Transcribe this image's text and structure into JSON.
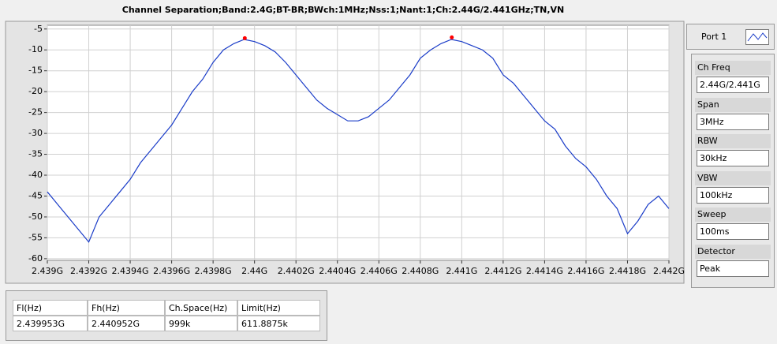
{
  "chart_data": {
    "type": "line",
    "title": "Channel Separation;Band:2.4G;BT-BR;BWch:1MHz;Nss:1;Nant:1;Ch:2.44G/2.441GHz;TN,VN",
    "x": [
      2.439,
      2.43905,
      2.4391,
      2.43915,
      2.4392,
      2.43925,
      2.4393,
      2.43935,
      2.4394,
      2.43945,
      2.4395,
      2.43955,
      2.4396,
      2.43965,
      2.4397,
      2.43975,
      2.4398,
      2.43985,
      2.4399,
      2.43995,
      2.44,
      2.44005,
      2.4401,
      2.44015,
      2.4402,
      2.44025,
      2.4403,
      2.44035,
      2.4404,
      2.44045,
      2.4405,
      2.44055,
      2.4406,
      2.44065,
      2.4407,
      2.44075,
      2.4408,
      2.44085,
      2.4409,
      2.44095,
      2.441,
      2.44105,
      2.4411,
      2.44115,
      2.4412,
      2.44125,
      2.4413,
      2.44135,
      2.4414,
      2.44145,
      2.4415,
      2.44155,
      2.4416,
      2.44165,
      2.4417,
      2.44175,
      2.4418,
      2.44185,
      2.4419,
      2.44195,
      2.442
    ],
    "series": [
      {
        "color": "#1a3cc8",
        "values": [
          -44,
          -47,
          -50,
          -53,
          -56,
          -50,
          -47,
          -44,
          -41,
          -37,
          -34,
          -31,
          -28,
          -24,
          -20,
          -17,
          -13,
          -10,
          -8.5,
          -7.5,
          -8,
          -9,
          -10.5,
          -13,
          -16,
          -19,
          -22,
          -24,
          -25.5,
          -27,
          -27,
          -26,
          -24,
          -22,
          -19,
          -16,
          -12,
          -10,
          -8.5,
          -7.5,
          -8,
          -9,
          -10,
          -12,
          -16,
          -18,
          -21,
          -24,
          -27,
          -29,
          -33,
          -36,
          -38,
          -41,
          -45,
          -48,
          -54,
          -51,
          -47,
          -45,
          -48
        ]
      }
    ],
    "peaks": {
      "color": "#ff0000",
      "x": [
        2.439953,
        2.440952
      ],
      "y": [
        -7.2,
        -7
      ]
    },
    "xlim": [
      2.439,
      2.442
    ],
    "xticks": [
      {
        "value": 2.439,
        "label": "2.439G"
      },
      {
        "value": 2.4392,
        "label": "2.4392G"
      },
      {
        "value": 2.4394,
        "label": "2.4394G"
      },
      {
        "value": 2.4396,
        "label": "2.4396G"
      },
      {
        "value": 2.4398,
        "label": "2.4398G"
      },
      {
        "value": 2.44,
        "label": "2.44G"
      },
      {
        "value": 2.4402,
        "label": "2.4402G"
      },
      {
        "value": 2.4404,
        "label": "2.4404G"
      },
      {
        "value": 2.4406,
        "label": "2.4406G"
      },
      {
        "value": 2.4408,
        "label": "2.4408G"
      },
      {
        "value": 2.441,
        "label": "2.441G"
      },
      {
        "value": 2.4412,
        "label": "2.4412G"
      },
      {
        "value": 2.4414,
        "label": "2.4414G"
      },
      {
        "value": 2.4416,
        "label": "2.4416G"
      },
      {
        "value": 2.4418,
        "label": "2.4418G"
      },
      {
        "value": 2.442,
        "label": "2.442G"
      }
    ],
    "ylim": [
      -60.4,
      -4.1
    ],
    "yticks": [
      -5,
      -10,
      -15,
      -20,
      -25,
      -30,
      -35,
      -40,
      -45,
      -50,
      -55,
      -60
    ],
    "grid": true
  },
  "port": {
    "label": "Port 1"
  },
  "settings": [
    {
      "label": "Ch Freq",
      "value": "2.44G/2.441G"
    },
    {
      "label": "Span",
      "value": "3MHz"
    },
    {
      "label": "RBW",
      "value": "30kHz"
    },
    {
      "label": "VBW",
      "value": "100kHz"
    },
    {
      "label": "Sweep",
      "value": "100ms"
    },
    {
      "label": "Detector",
      "value": "Peak"
    }
  ],
  "table": {
    "headers": [
      "Fl(Hz)",
      "Fh(Hz)",
      "Ch.Space(Hz)",
      "Limit(Hz)"
    ],
    "rows": [
      [
        "2.439953G",
        "2.440952G",
        "999k",
        "611.8875k"
      ]
    ]
  }
}
